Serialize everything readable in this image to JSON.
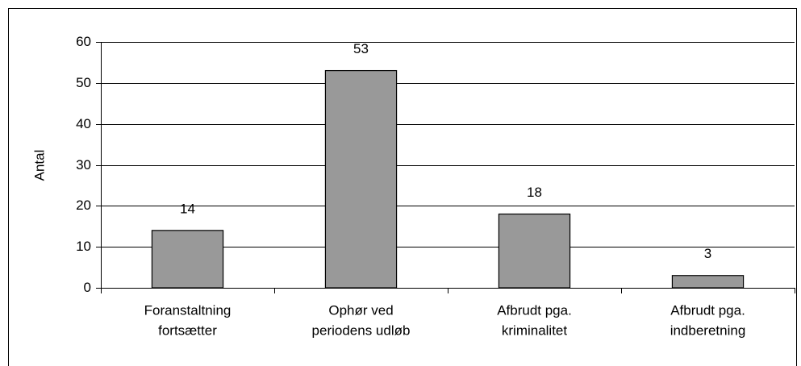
{
  "chart_data": {
    "type": "bar",
    "y_label": "Antal",
    "categories": [
      [
        "Foranstaltning",
        "fortsætter"
      ],
      [
        "Ophør ved",
        "periodens udløb"
      ],
      [
        "Afbrudt pga.",
        "kriminalitet"
      ],
      [
        "Afbrudt pga.",
        "indberetning"
      ]
    ],
    "values": [
      14,
      53,
      18,
      3
    ],
    "color": "#999999",
    "ylim": [
      0,
      60
    ],
    "yticks": [
      0,
      10,
      20,
      30,
      40,
      50,
      60
    ],
    "grid": true
  }
}
